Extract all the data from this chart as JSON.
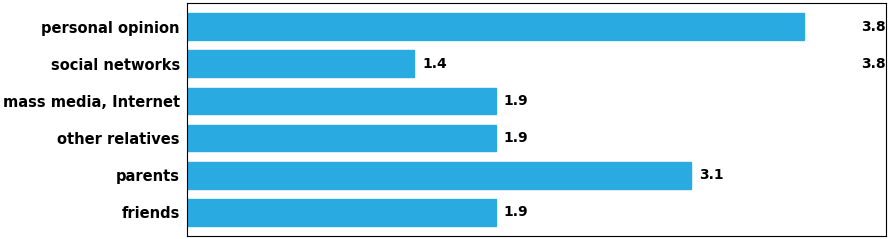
{
  "categories": [
    "personal opinion",
    "social networks",
    "mass media, Internet",
    "other relatives",
    "parents",
    "friends"
  ],
  "values": [
    3.8,
    1.4,
    1.9,
    1.9,
    3.1,
    1.9
  ],
  "bar_color": "#29ABE2",
  "xlim": [
    0,
    4.3
  ],
  "label_fontsize": 10,
  "tick_fontsize": 10.5,
  "bar_annotations": [
    null,
    "1.4",
    "1.9",
    "1.9",
    "3.1",
    "1.9"
  ],
  "personal_opinion_label": {
    "text": "3.8",
    "x": 4.15
  },
  "social_networks_right_label": {
    "text": "3.8",
    "x": 4.15
  },
  "background_color": "#ffffff",
  "border_color": "#000000",
  "bar_height": 0.72
}
